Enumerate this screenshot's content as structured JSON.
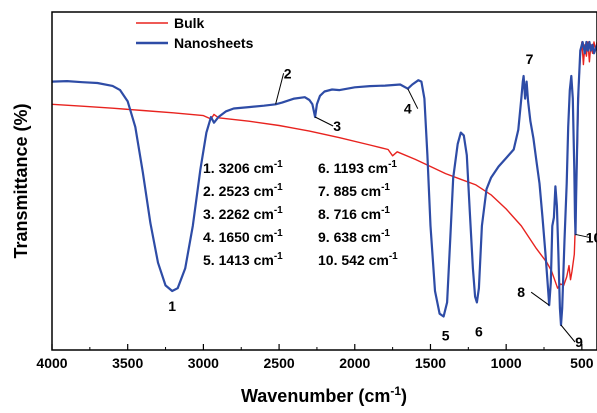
{
  "chart_data": {
    "type": "line",
    "title": "",
    "xlabel": "Wavenumber (cm",
    "xlabel_sup": "-1",
    "xlabel_close": ")",
    "ylabel": "Transmittance (%)",
    "xlim": [
      4000,
      400
    ],
    "x_reversed": true,
    "y_ticks_visible": false,
    "grid": false,
    "legend_position": "top-left",
    "x_ticks": [
      4000,
      3500,
      3000,
      2500,
      2000,
      1500,
      1000,
      500
    ],
    "series": [
      {
        "name": "Bulk",
        "color": "#e8231f",
        "points": [
          [
            4000,
            78
          ],
          [
            3800,
            77.3
          ],
          [
            3600,
            76.6
          ],
          [
            3400,
            75.8
          ],
          [
            3200,
            75
          ],
          [
            3000,
            74
          ],
          [
            2950,
            72.8
          ],
          [
            2930,
            74.4
          ],
          [
            2900,
            73.2
          ],
          [
            2700,
            72
          ],
          [
            2500,
            70.5
          ],
          [
            2300,
            68.5
          ],
          [
            2100,
            66.2
          ],
          [
            1900,
            63.6
          ],
          [
            1780,
            62
          ],
          [
            1750,
            59.8
          ],
          [
            1720,
            61.2
          ],
          [
            1600,
            58.5
          ],
          [
            1500,
            56
          ],
          [
            1400,
            53.5
          ],
          [
            1300,
            51.5
          ],
          [
            1200,
            49.5
          ],
          [
            1100,
            46
          ],
          [
            1000,
            41
          ],
          [
            900,
            35
          ],
          [
            800,
            27
          ],
          [
            730,
            22
          ],
          [
            700,
            19
          ],
          [
            680,
            16
          ],
          [
            660,
            13
          ],
          [
            640,
            14.5
          ],
          [
            620,
            14
          ],
          [
            600,
            17
          ],
          [
            585,
            21
          ],
          [
            575,
            16
          ],
          [
            565,
            19
          ],
          [
            550,
            25
          ],
          [
            540,
            40
          ],
          [
            530,
            62
          ],
          [
            520,
            85
          ],
          [
            510,
            95
          ],
          [
            500,
            100
          ],
          [
            490,
            92
          ],
          [
            480,
            99
          ],
          [
            470,
            95
          ],
          [
            460,
            100
          ],
          [
            450,
            93
          ],
          [
            440,
            99
          ],
          [
            430,
            96
          ],
          [
            420,
            100
          ],
          [
            410,
            97
          ],
          [
            400,
            100
          ]
        ]
      },
      {
        "name": "Nanosheets",
        "color": "#2e4ca6",
        "points": [
          [
            4000,
            86
          ],
          [
            3900,
            86.2
          ],
          [
            3800,
            85.8
          ],
          [
            3700,
            85.5
          ],
          [
            3600,
            84.5
          ],
          [
            3550,
            83
          ],
          [
            3500,
            79
          ],
          [
            3450,
            70
          ],
          [
            3400,
            54
          ],
          [
            3350,
            36
          ],
          [
            3300,
            22
          ],
          [
            3250,
            14
          ],
          [
            3206,
            12
          ],
          [
            3170,
            13
          ],
          [
            3120,
            20
          ],
          [
            3070,
            35
          ],
          [
            3020,
            55
          ],
          [
            2980,
            68
          ],
          [
            2950,
            73.5
          ],
          [
            2930,
            71.5
          ],
          [
            2900,
            73.5
          ],
          [
            2850,
            75.5
          ],
          [
            2800,
            76.5
          ],
          [
            2700,
            77
          ],
          [
            2600,
            77.5
          ],
          [
            2523,
            78
          ],
          [
            2480,
            78.6
          ],
          [
            2400,
            80
          ],
          [
            2330,
            80.5
          ],
          [
            2300,
            79.5
          ],
          [
            2280,
            78
          ],
          [
            2262,
            73.5
          ],
          [
            2250,
            78
          ],
          [
            2230,
            81
          ],
          [
            2200,
            82.5
          ],
          [
            2150,
            83.2
          ],
          [
            2100,
            83
          ],
          [
            2050,
            83.5
          ],
          [
            2000,
            84
          ],
          [
            1900,
            84.4
          ],
          [
            1800,
            84.6
          ],
          [
            1700,
            85
          ],
          [
            1650,
            83.5
          ],
          [
            1620,
            85
          ],
          [
            1580,
            86.5
          ],
          [
            1560,
            86
          ],
          [
            1540,
            80
          ],
          [
            1520,
            60
          ],
          [
            1500,
            35
          ],
          [
            1470,
            12
          ],
          [
            1440,
            4
          ],
          [
            1413,
            3
          ],
          [
            1390,
            8
          ],
          [
            1370,
            30
          ],
          [
            1350,
            52
          ],
          [
            1320,
            64
          ],
          [
            1300,
            68
          ],
          [
            1280,
            67
          ],
          [
            1260,
            60
          ],
          [
            1240,
            40
          ],
          [
            1220,
            20
          ],
          [
            1205,
            10
          ],
          [
            1193,
            8
          ],
          [
            1180,
            13
          ],
          [
            1160,
            35
          ],
          [
            1130,
            48
          ],
          [
            1100,
            52
          ],
          [
            1050,
            56
          ],
          [
            1000,
            59
          ],
          [
            950,
            62
          ],
          [
            920,
            69
          ],
          [
            900,
            80
          ],
          [
            890,
            86
          ],
          [
            885,
            88
          ],
          [
            875,
            80
          ],
          [
            865,
            86
          ],
          [
            855,
            79
          ],
          [
            840,
            72
          ],
          [
            820,
            66
          ],
          [
            800,
            58
          ],
          [
            780,
            50
          ],
          [
            760,
            38
          ],
          [
            740,
            25
          ],
          [
            725,
            14
          ],
          [
            716,
            7
          ],
          [
            705,
            15
          ],
          [
            695,
            35
          ],
          [
            685,
            38
          ],
          [
            675,
            49
          ],
          [
            665,
            42
          ],
          [
            655,
            25
          ],
          [
            645,
            6
          ],
          [
            638,
            0
          ],
          [
            630,
            6
          ],
          [
            615,
            30
          ],
          [
            600,
            50
          ],
          [
            590,
            70
          ],
          [
            580,
            83
          ],
          [
            570,
            88
          ],
          [
            560,
            80
          ],
          [
            550,
            55
          ],
          [
            545,
            38
          ],
          [
            542,
            32
          ],
          [
            538,
            45
          ],
          [
            525,
            80
          ],
          [
            510,
            97
          ],
          [
            495,
            100
          ],
          [
            480,
            96
          ],
          [
            470,
            100
          ],
          [
            460,
            97
          ],
          [
            450,
            100
          ],
          [
            440,
            97
          ],
          [
            430,
            99
          ],
          [
            420,
            96
          ],
          [
            400,
            99
          ]
        ]
      }
    ],
    "peak_list": [
      "1. 3206 cm",
      "6. 1193 cm",
      "2. 2523 cm",
      "7. 885 cm",
      "3. 2262 cm",
      "8. 716 cm",
      "4. 1650 cm",
      "9. 638 cm",
      "5. 1413 cm",
      "10. 542 cm"
    ],
    "peak_list_sup": "-1",
    "peak_labels": [
      {
        "text": "1",
        "x": 3206,
        "y": 12
      },
      {
        "text": "2",
        "x": 2523,
        "y": 78
      },
      {
        "text": "3",
        "x": 2262,
        "y": 73.5
      },
      {
        "text": "4",
        "x": 1650,
        "y": 83.5
      },
      {
        "text": "5",
        "x": 1413,
        "y": 3
      },
      {
        "text": "6",
        "x": 1193,
        "y": 8
      },
      {
        "text": "7",
        "x": 885,
        "y": 88
      },
      {
        "text": "8",
        "x": 716,
        "y": 7
      },
      {
        "text": "9",
        "x": 638,
        "y": 0
      },
      {
        "text": "10",
        "x": 542,
        "y": 32
      }
    ]
  }
}
